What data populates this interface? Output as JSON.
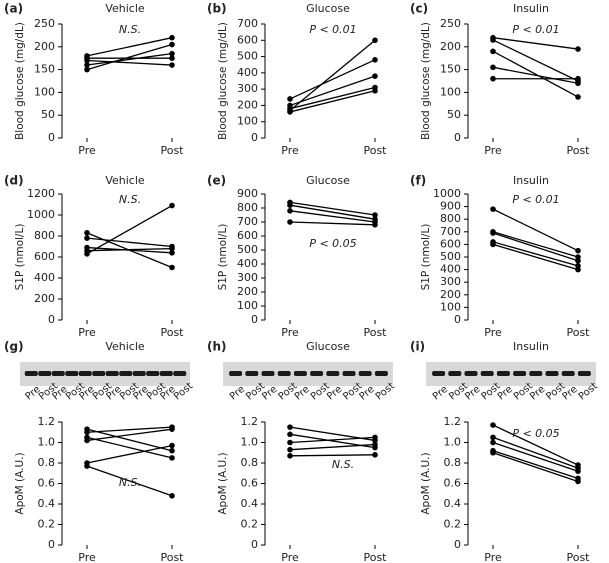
{
  "chart_data": [
    {
      "type": "line",
      "panel": "(a)",
      "title": "Vehicle",
      "y_label": "Blood glucose (mg/dL)",
      "annotation": "N.S.",
      "categories": [
        "Pre",
        "Post"
      ],
      "color": "#000000",
      "ylim": [
        0,
        250
      ],
      "yticks": [
        0,
        50,
        100,
        150,
        200,
        250
      ],
      "series": [
        {
          "values": [
            150,
            205
          ]
        },
        {
          "values": [
            160,
            185
          ]
        },
        {
          "values": [
            170,
            160
          ]
        },
        {
          "values": [
            175,
            175
          ]
        },
        {
          "values": [
            180,
            220
          ]
        }
      ]
    },
    {
      "type": "line",
      "panel": "(b)",
      "title": "Glucose",
      "y_label": "Blood glucose (mg/dL)",
      "annotation": "P < 0.01",
      "categories": [
        "Pre",
        "Post"
      ],
      "color": "#000000",
      "ylim": [
        0,
        700
      ],
      "yticks": [
        0,
        100,
        200,
        300,
        400,
        500,
        600,
        700
      ],
      "series": [
        {
          "values": [
            170,
            600
          ]
        },
        {
          "values": [
            240,
            480
          ]
        },
        {
          "values": [
            200,
            380
          ]
        },
        {
          "values": [
            180,
            310
          ]
        },
        {
          "values": [
            160,
            290
          ]
        }
      ]
    },
    {
      "type": "line",
      "panel": "(c)",
      "title": "Insulin",
      "y_label": "Blood glucose (mg/dL)",
      "annotation": "P < 0.01",
      "categories": [
        "Pre",
        "Post"
      ],
      "color": "#000000",
      "ylim": [
        0,
        250
      ],
      "yticks": [
        0,
        50,
        100,
        150,
        200,
        250
      ],
      "series": [
        {
          "values": [
            220,
            195
          ]
        },
        {
          "values": [
            215,
            125
          ]
        },
        {
          "values": [
            190,
            90
          ]
        },
        {
          "values": [
            155,
            120
          ]
        },
        {
          "values": [
            130,
            130
          ]
        }
      ]
    },
    {
      "type": "line",
      "panel": "(d)",
      "title": "Vehicle",
      "y_label": "S1P (nmol/L)",
      "annotation": "N.S.",
      "categories": [
        "Pre",
        "Post"
      ],
      "color": "#000000",
      "ylim": [
        0,
        1200
      ],
      "yticks": [
        0,
        200,
        400,
        600,
        800,
        1000,
        1200
      ],
      "series": [
        {
          "values": [
            830,
            500
          ]
        },
        {
          "values": [
            780,
            700
          ]
        },
        {
          "values": [
            690,
            640
          ]
        },
        {
          "values": [
            660,
            680
          ]
        },
        {
          "values": [
            630,
            1090
          ]
        }
      ]
    },
    {
      "type": "line",
      "panel": "(e)",
      "title": "Glucose",
      "y_label": "S1P (nmol/L)",
      "annotation": "P < 0.05",
      "categories": [
        "Pre",
        "Post"
      ],
      "color": "#000000",
      "ylim": [
        0,
        900
      ],
      "yticks": [
        0,
        100,
        200,
        300,
        400,
        500,
        600,
        700,
        800,
        900
      ],
      "series": [
        {
          "values": [
            840,
            750
          ]
        },
        {
          "values": [
            820,
            720
          ]
        },
        {
          "values": [
            780,
            700
          ]
        },
        {
          "values": [
            700,
            680
          ]
        }
      ]
    },
    {
      "type": "line",
      "panel": "(f)",
      "title": "Insulin",
      "y_label": "S1P (nmol/L)",
      "annotation": "P < 0.01",
      "categories": [
        "Pre",
        "Post"
      ],
      "color": "#000000",
      "ylim": [
        0,
        1000
      ],
      "yticks": [
        0,
        100,
        200,
        300,
        400,
        500,
        600,
        700,
        800,
        900,
        1000
      ],
      "series": [
        {
          "values": [
            880,
            550
          ]
        },
        {
          "values": [
            700,
            500
          ]
        },
        {
          "values": [
            690,
            470
          ]
        },
        {
          "values": [
            620,
            430
          ]
        },
        {
          "values": [
            600,
            400
          ]
        }
      ]
    },
    {
      "type": "line",
      "panel": "(g)",
      "title": "Vehicle",
      "y_label": "ApoM (A.U.)",
      "annotation": "N.S.",
      "categories": [
        "Pre",
        "Post"
      ],
      "color": "#000000",
      "lane_labels": [
        "Pre",
        "Post",
        "Pre",
        "Post",
        "Pre",
        "Post",
        "Pre",
        "Post",
        "Pre",
        "Post",
        "Pre",
        "Post"
      ],
      "ylim": [
        0,
        1.2
      ],
      "yticks": [
        0,
        0.2,
        0.4,
        0.6,
        0.8,
        {
          "value": 1,
          "label": "1.0"
        },
        1.2
      ],
      "series": [
        {
          "values": [
            1.13,
            0.92
          ]
        },
        {
          "values": [
            1.1,
            1.15
          ]
        },
        {
          "values": [
            1.05,
            0.85
          ]
        },
        {
          "values": [
            1.02,
            1.13
          ]
        },
        {
          "values": [
            0.8,
            0.97
          ]
        },
        {
          "values": [
            0.77,
            0.48
          ]
        }
      ]
    },
    {
      "type": "line",
      "panel": "(h)",
      "title": "Glucose",
      "y_label": "ApoM (A.U.)",
      "annotation": "N.S.",
      "categories": [
        "Pre",
        "Post"
      ],
      "color": "#000000",
      "lane_labels": [
        "Pre",
        "Post",
        "Pre",
        "Post",
        "Pre",
        "Post",
        "Pre",
        "Post",
        "Pre",
        "Post"
      ],
      "ylim": [
        0,
        1.2
      ],
      "yticks": [
        0,
        0.2,
        0.4,
        0.6,
        0.8,
        {
          "value": 1,
          "label": "1.0"
        },
        1.2
      ],
      "series": [
        {
          "values": [
            1.15,
            1.02
          ]
        },
        {
          "values": [
            1.08,
            0.95
          ]
        },
        {
          "values": [
            1.0,
            1.05
          ]
        },
        {
          "values": [
            0.93,
            0.98
          ]
        },
        {
          "values": [
            0.87,
            0.88
          ]
        }
      ]
    },
    {
      "type": "line",
      "panel": "(i)",
      "title": "Insulin",
      "y_label": "ApoM (A.U.)",
      "annotation": "P < 0.05",
      "categories": [
        "Pre",
        "Post"
      ],
      "color": "#000000",
      "lane_labels": [
        "Pre",
        "Post",
        "Pre",
        "Post",
        "Pre",
        "Post",
        "Pre",
        "Post",
        "Pre",
        "Post"
      ],
      "ylim": [
        0,
        1.2
      ],
      "yticks": [
        0,
        0.2,
        0.4,
        0.6,
        0.8,
        {
          "value": 1,
          "label": "1.0"
        },
        1.2
      ],
      "series": [
        {
          "values": [
            1.17,
            0.78
          ]
        },
        {
          "values": [
            1.05,
            0.75
          ]
        },
        {
          "values": [
            1.0,
            0.72
          ]
        },
        {
          "values": [
            0.92,
            0.65
          ]
        },
        {
          "values": [
            0.9,
            0.62
          ]
        }
      ]
    }
  ]
}
